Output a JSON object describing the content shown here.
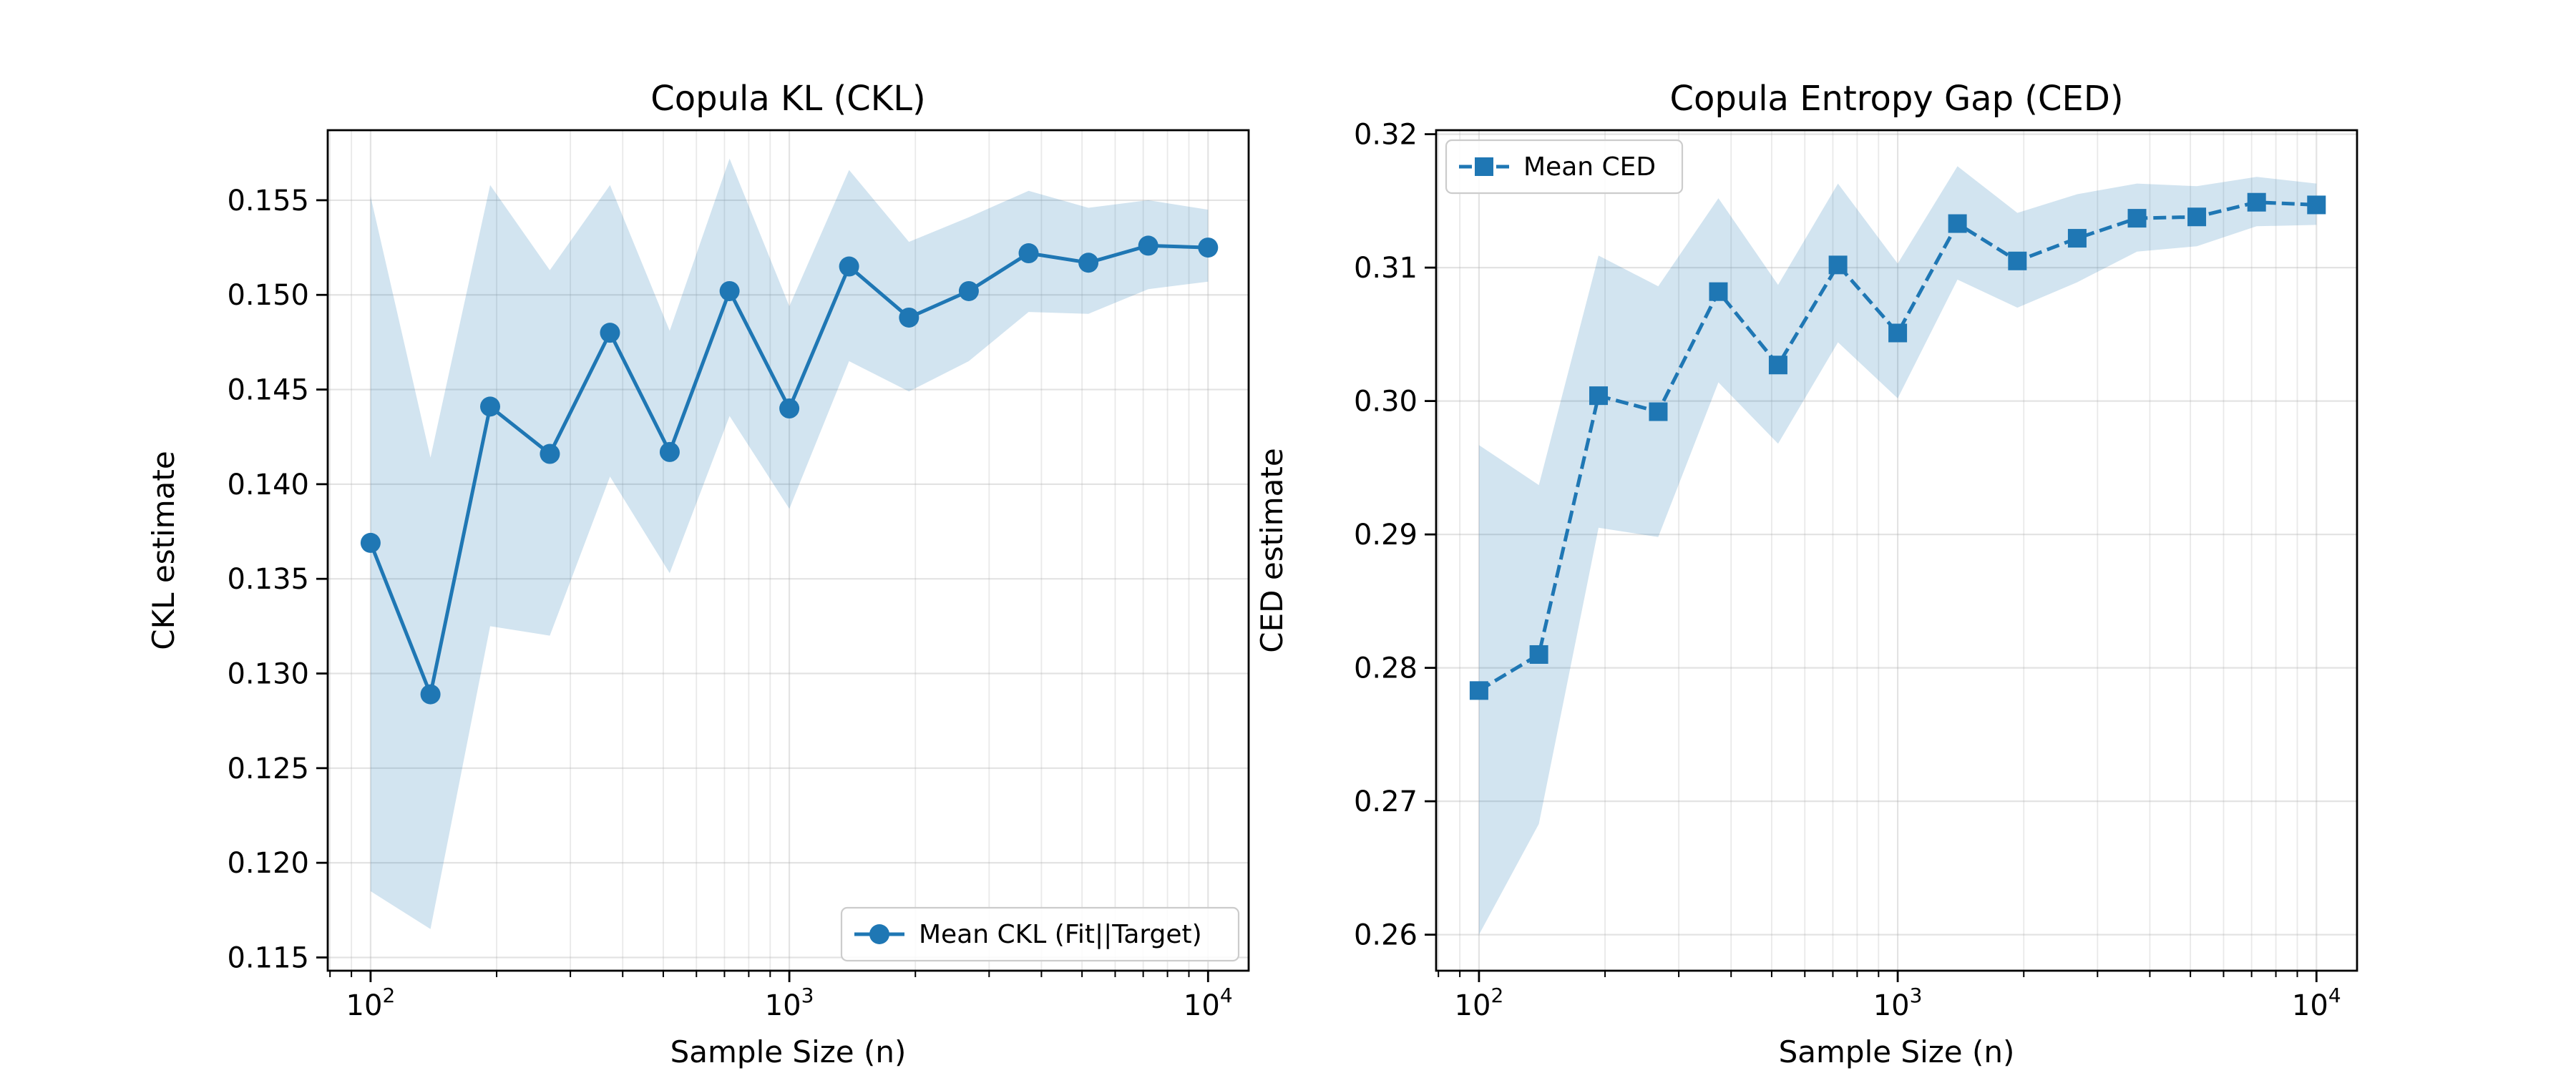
{
  "chart_data": [
    {
      "type": "line",
      "title": "Copula KL (CKL)",
      "xlabel": "Sample Size (n)",
      "ylabel": "CKL estimate",
      "xscale": "log",
      "xlim": [
        79,
        12500
      ],
      "ylim": [
        0.1143,
        0.1587
      ],
      "x_ticks": [
        {
          "value": 100,
          "base": "10",
          "exp": "2"
        },
        {
          "value": 1000,
          "base": "10",
          "exp": "3"
        },
        {
          "value": 10000,
          "base": "10",
          "exp": "4"
        }
      ],
      "y_ticks": [
        "0.115",
        "0.120",
        "0.125",
        "0.130",
        "0.135",
        "0.140",
        "0.145",
        "0.150",
        "0.155"
      ],
      "grid": true,
      "legend_position": "lower-right",
      "series": [
        {
          "name": "Mean CKL (Fit||Target)",
          "color": "#1f77b4",
          "marker": "circle",
          "line_style": "solid",
          "x": [
            100,
            139,
            193,
            268,
            373,
            518,
            720,
            1000,
            1389,
            1931,
            2683,
            3728,
            5179,
            7197,
            10000
          ],
          "y": [
            0.1369,
            0.1289,
            0.1441,
            0.1416,
            0.148,
            0.1417,
            0.1502,
            0.144,
            0.1515,
            0.1488,
            0.1502,
            0.1522,
            0.1517,
            0.1526,
            0.1525
          ],
          "band_lower": [
            0.1185,
            0.1165,
            0.1325,
            0.132,
            0.1404,
            0.1353,
            0.1436,
            0.1387,
            0.1465,
            0.1449,
            0.1465,
            0.1491,
            0.149,
            0.1503,
            0.1507
          ],
          "band_upper": [
            0.1552,
            0.1414,
            0.1558,
            0.1513,
            0.1558,
            0.1481,
            0.1572,
            0.1494,
            0.1566,
            0.1528,
            0.1541,
            0.1555,
            0.1546,
            0.155,
            0.1545
          ]
        }
      ]
    },
    {
      "type": "line",
      "title": "Copula Entropy Gap (CED)",
      "xlabel": "Sample Size (n)",
      "ylabel": "CED estimate",
      "xscale": "log",
      "xlim": [
        79,
        12500
      ],
      "ylim": [
        0.2573,
        0.3203
      ],
      "x_ticks": [
        {
          "value": 100,
          "base": "10",
          "exp": "2"
        },
        {
          "value": 1000,
          "base": "10",
          "exp": "3"
        },
        {
          "value": 10000,
          "base": "10",
          "exp": "4"
        }
      ],
      "y_ticks": [
        "0.26",
        "0.27",
        "0.28",
        "0.29",
        "0.30",
        "0.31",
        "0.32"
      ],
      "grid": true,
      "legend_position": "upper-left",
      "series": [
        {
          "name": "Mean CED",
          "color": "#1f77b4",
          "marker": "square",
          "line_style": "dashed",
          "x": [
            100,
            139,
            193,
            268,
            373,
            518,
            720,
            1000,
            1389,
            1931,
            2683,
            3728,
            5179,
            7197,
            10000
          ],
          "y": [
            0.2783,
            0.281,
            0.3004,
            0.2992,
            0.3082,
            0.3027,
            0.3102,
            0.3051,
            0.3133,
            0.3105,
            0.3122,
            0.3137,
            0.3138,
            0.3149,
            0.3147
          ],
          "band_lower": [
            0.26,
            0.2683,
            0.2905,
            0.2898,
            0.3014,
            0.2968,
            0.3044,
            0.3002,
            0.3091,
            0.307,
            0.3089,
            0.3112,
            0.3116,
            0.3131,
            0.3132
          ],
          "band_upper": [
            0.2967,
            0.2937,
            0.3109,
            0.3086,
            0.3152,
            0.3087,
            0.3163,
            0.3103,
            0.3176,
            0.3141,
            0.3155,
            0.3163,
            0.3161,
            0.3168,
            0.3163
          ]
        }
      ]
    }
  ]
}
